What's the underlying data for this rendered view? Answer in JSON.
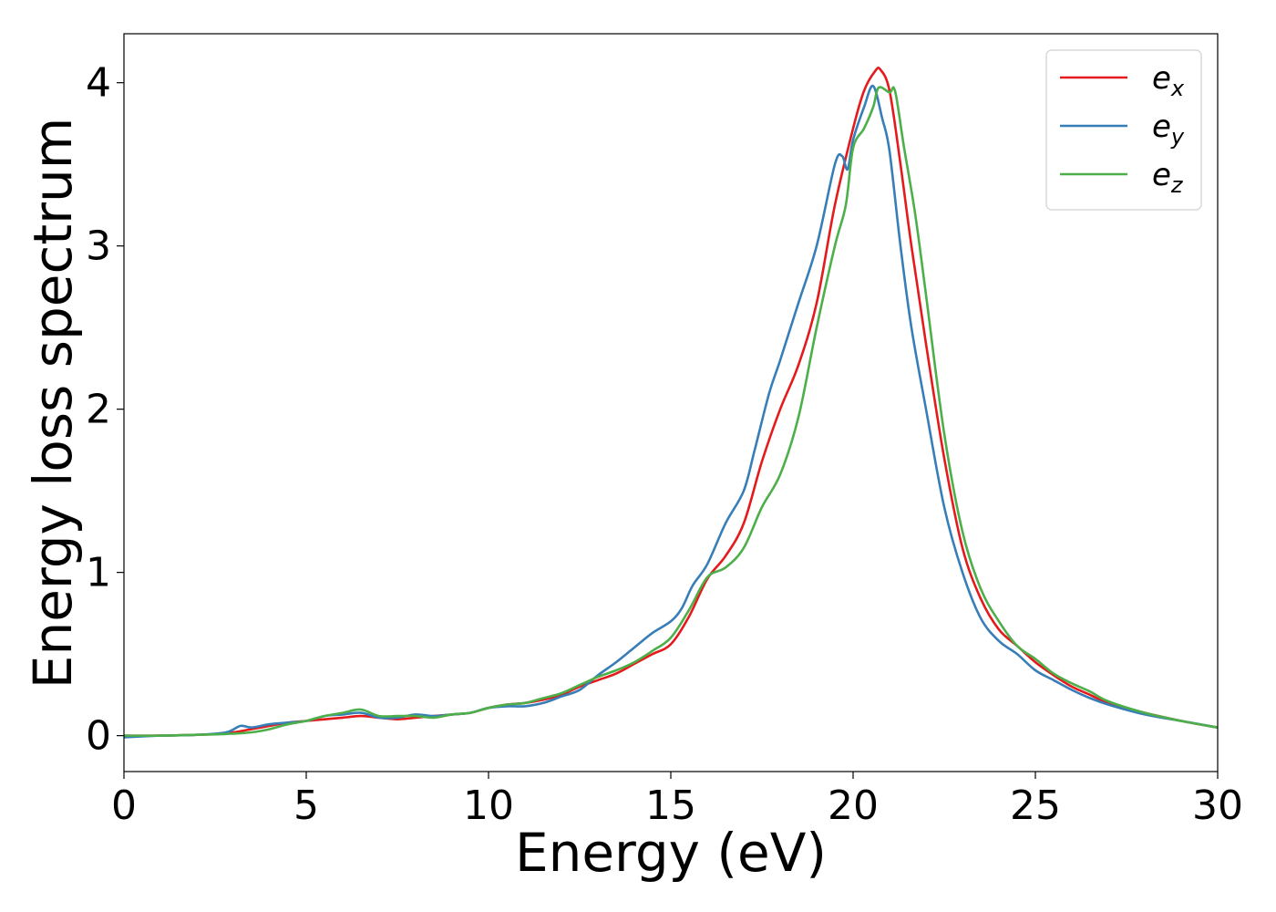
{
  "chart_data": {
    "type": "line",
    "title": "",
    "xlabel": "Energy (eV)",
    "ylabel": "Energy loss spectrum",
    "xlim": [
      0,
      30
    ],
    "ylim": [
      -0.22,
      4.3
    ],
    "xticks": [
      0,
      5,
      10,
      15,
      20,
      25,
      30
    ],
    "yticks": [
      0,
      1,
      2,
      3,
      4
    ],
    "grid": false,
    "legend_position": "top-right",
    "series": [
      {
        "name": "e_x",
        "base": "e",
        "sub": "x",
        "color": "#e41a1c",
        "points": [
          [
            0,
            0
          ],
          [
            1,
            0
          ],
          [
            2,
            0.005
          ],
          [
            2.5,
            0.01
          ],
          [
            3,
            0.02
          ],
          [
            3.5,
            0.04
          ],
          [
            4,
            0.06
          ],
          [
            4.5,
            0.08
          ],
          [
            5,
            0.09
          ],
          [
            5.5,
            0.1
          ],
          [
            6,
            0.11
          ],
          [
            6.5,
            0.12
          ],
          [
            7,
            0.11
          ],
          [
            7.5,
            0.1
          ],
          [
            8,
            0.11
          ],
          [
            8.5,
            0.12
          ],
          [
            9,
            0.13
          ],
          [
            9.5,
            0.14
          ],
          [
            10,
            0.17
          ],
          [
            10.5,
            0.19
          ],
          [
            11,
            0.2
          ],
          [
            11.5,
            0.22
          ],
          [
            12,
            0.25
          ],
          [
            12.5,
            0.3
          ],
          [
            13,
            0.34
          ],
          [
            13.5,
            0.38
          ],
          [
            14,
            0.44
          ],
          [
            14.5,
            0.5
          ],
          [
            15,
            0.56
          ],
          [
            15.5,
            0.73
          ],
          [
            16,
            0.96
          ],
          [
            16.5,
            1.1
          ],
          [
            17,
            1.3
          ],
          [
            17.5,
            1.68
          ],
          [
            18,
            2.0
          ],
          [
            18.5,
            2.27
          ],
          [
            19,
            2.65
          ],
          [
            19.5,
            3.25
          ],
          [
            20,
            3.72
          ],
          [
            20.3,
            3.95
          ],
          [
            20.6,
            4.07
          ],
          [
            20.75,
            4.08
          ],
          [
            21,
            3.95
          ],
          [
            21.3,
            3.5
          ],
          [
            21.6,
            3.0
          ],
          [
            22,
            2.4
          ],
          [
            22.5,
            1.7
          ],
          [
            23,
            1.15
          ],
          [
            23.5,
            0.84
          ],
          [
            24,
            0.65
          ],
          [
            24.5,
            0.55
          ],
          [
            25,
            0.45
          ],
          [
            25.5,
            0.37
          ],
          [
            26,
            0.3
          ],
          [
            26.5,
            0.25
          ],
          [
            27,
            0.2
          ],
          [
            28,
            0.14
          ],
          [
            29,
            0.09
          ],
          [
            30,
            0.05
          ]
        ]
      },
      {
        "name": "e_y",
        "base": "e",
        "sub": "y",
        "color": "#377eb8",
        "points": [
          [
            0,
            -0.01
          ],
          [
            1,
            0
          ],
          [
            2,
            0.005
          ],
          [
            2.8,
            0.02
          ],
          [
            3.2,
            0.06
          ],
          [
            3.5,
            0.05
          ],
          [
            4,
            0.07
          ],
          [
            4.5,
            0.08
          ],
          [
            5,
            0.09
          ],
          [
            5.5,
            0.12
          ],
          [
            6,
            0.13
          ],
          [
            6.5,
            0.14
          ],
          [
            7,
            0.11
          ],
          [
            7.5,
            0.11
          ],
          [
            8,
            0.13
          ],
          [
            8.5,
            0.12
          ],
          [
            9,
            0.13
          ],
          [
            9.5,
            0.14
          ],
          [
            10,
            0.17
          ],
          [
            10.5,
            0.18
          ],
          [
            11,
            0.18
          ],
          [
            11.5,
            0.2
          ],
          [
            12,
            0.24
          ],
          [
            12.5,
            0.28
          ],
          [
            13,
            0.37
          ],
          [
            13.5,
            0.45
          ],
          [
            14,
            0.54
          ],
          [
            14.5,
            0.63
          ],
          [
            15,
            0.7
          ],
          [
            15.3,
            0.78
          ],
          [
            15.6,
            0.92
          ],
          [
            16,
            1.05
          ],
          [
            16.5,
            1.3
          ],
          [
            17,
            1.5
          ],
          [
            17.3,
            1.75
          ],
          [
            17.7,
            2.1
          ],
          [
            18,
            2.3
          ],
          [
            18.5,
            2.65
          ],
          [
            19,
            3.0
          ],
          [
            19.5,
            3.5
          ],
          [
            19.7,
            3.55
          ],
          [
            19.85,
            3.47
          ],
          [
            20,
            3.65
          ],
          [
            20.3,
            3.85
          ],
          [
            20.55,
            3.98
          ],
          [
            20.8,
            3.78
          ],
          [
            21,
            3.58
          ],
          [
            21.3,
            3.0
          ],
          [
            21.6,
            2.5
          ],
          [
            22,
            2.0
          ],
          [
            22.5,
            1.4
          ],
          [
            23,
            1.0
          ],
          [
            23.5,
            0.72
          ],
          [
            24,
            0.58
          ],
          [
            24.5,
            0.5
          ],
          [
            25,
            0.4
          ],
          [
            25.5,
            0.34
          ],
          [
            26,
            0.28
          ],
          [
            26.5,
            0.23
          ],
          [
            27,
            0.19
          ],
          [
            28,
            0.13
          ],
          [
            29,
            0.09
          ],
          [
            30,
            0.05
          ]
        ]
      },
      {
        "name": "e_z",
        "base": "e",
        "sub": "z",
        "color": "#4daf4a",
        "points": [
          [
            0,
            0
          ],
          [
            1,
            0
          ],
          [
            2,
            0.005
          ],
          [
            2.8,
            0.01
          ],
          [
            3.5,
            0.02
          ],
          [
            4,
            0.04
          ],
          [
            4.5,
            0.07
          ],
          [
            5,
            0.09
          ],
          [
            5.5,
            0.12
          ],
          [
            6,
            0.14
          ],
          [
            6.5,
            0.16
          ],
          [
            7,
            0.12
          ],
          [
            7.5,
            0.12
          ],
          [
            8,
            0.12
          ],
          [
            8.5,
            0.11
          ],
          [
            9,
            0.13
          ],
          [
            9.5,
            0.14
          ],
          [
            10,
            0.17
          ],
          [
            10.5,
            0.19
          ],
          [
            11,
            0.2
          ],
          [
            11.5,
            0.23
          ],
          [
            12,
            0.26
          ],
          [
            12.5,
            0.31
          ],
          [
            13,
            0.36
          ],
          [
            13.5,
            0.4
          ],
          [
            14,
            0.45
          ],
          [
            14.5,
            0.52
          ],
          [
            15,
            0.6
          ],
          [
            15.5,
            0.77
          ],
          [
            16,
            0.97
          ],
          [
            16.5,
            1.03
          ],
          [
            17,
            1.15
          ],
          [
            17.5,
            1.4
          ],
          [
            18,
            1.6
          ],
          [
            18.5,
            1.95
          ],
          [
            19,
            2.5
          ],
          [
            19.5,
            3.0
          ],
          [
            19.8,
            3.25
          ],
          [
            20,
            3.6
          ],
          [
            20.3,
            3.72
          ],
          [
            20.55,
            3.85
          ],
          [
            20.7,
            3.97
          ],
          [
            21,
            3.94
          ],
          [
            21.15,
            3.95
          ],
          [
            21.4,
            3.6
          ],
          [
            21.7,
            3.2
          ],
          [
            22,
            2.7
          ],
          [
            22.5,
            1.85
          ],
          [
            23,
            1.25
          ],
          [
            23.5,
            0.9
          ],
          [
            24,
            0.7
          ],
          [
            24.5,
            0.55
          ],
          [
            25,
            0.47
          ],
          [
            25.5,
            0.38
          ],
          [
            26,
            0.32
          ],
          [
            26.5,
            0.27
          ],
          [
            27,
            0.21
          ],
          [
            28,
            0.14
          ],
          [
            29,
            0.09
          ],
          [
            30,
            0.05
          ]
        ]
      }
    ]
  }
}
